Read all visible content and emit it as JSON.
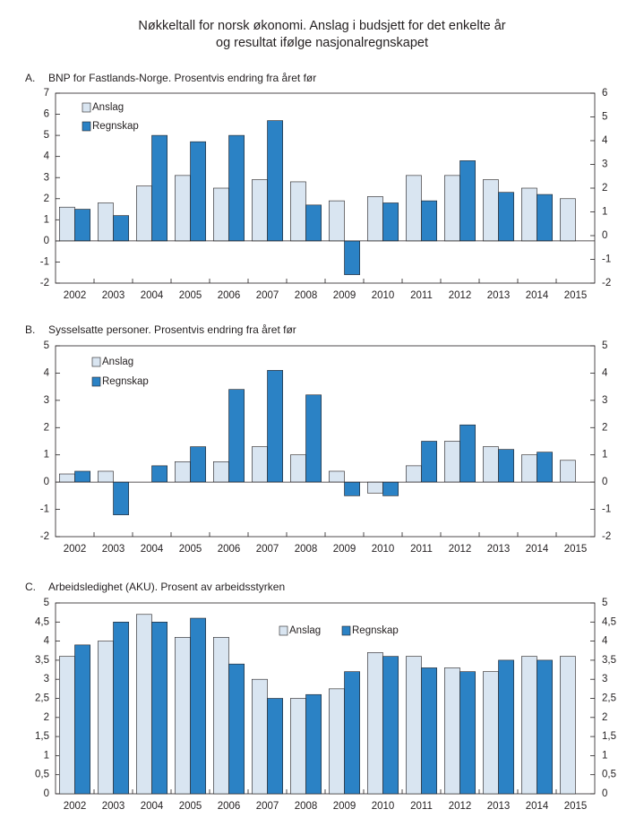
{
  "title": {
    "line1": "Nøkkeltall for norsk økonomi. Anslag i budsjett for det enkelte år",
    "line2": "og resultat ifølge nasjonalregnskapet"
  },
  "colors": {
    "anslag": "#d9e5f1",
    "regnskap": "#2b82c5",
    "edge": "#231f20"
  },
  "chart_data": [
    {
      "type": "bar",
      "id": "A",
      "letter": "A.",
      "title": "BNP for Fastlands-Norge. Prosentvis endring fra året før",
      "categories": [
        "2002",
        "2003",
        "2004",
        "2005",
        "2006",
        "2007",
        "2008",
        "2009",
        "2010",
        "2011",
        "2012",
        "2013",
        "2014",
        "2015"
      ],
      "series": [
        {
          "name": "Anslag",
          "values": [
            1.6,
            1.8,
            2.6,
            3.1,
            2.5,
            2.9,
            2.8,
            1.9,
            2.1,
            3.1,
            3.1,
            2.9,
            2.5,
            2.0
          ]
        },
        {
          "name": "Regnskap",
          "values": [
            1.5,
            1.2,
            5.0,
            4.7,
            5.0,
            5.7,
            1.7,
            -1.6,
            1.8,
            1.9,
            3.8,
            2.3,
            2.2,
            null
          ]
        }
      ],
      "ylim": [
        -2,
        7
      ],
      "yticks": [
        -2,
        -1,
        0,
        1,
        2,
        3,
        4,
        5,
        6,
        7
      ],
      "ylim_right": [
        -2,
        6
      ],
      "yticks_right": [
        -2,
        -1,
        0,
        1,
        2,
        3,
        4,
        5,
        6
      ],
      "legend": "top-left",
      "xlabel": "",
      "ylabel": ""
    },
    {
      "type": "bar",
      "id": "B",
      "letter": "B.",
      "title": "Sysselsatte personer. Prosentvis endring fra året før",
      "categories": [
        "2002",
        "2003",
        "2004",
        "2005",
        "2006",
        "2007",
        "2008",
        "2009",
        "2010",
        "2011",
        "2012",
        "2013",
        "2014",
        "2015"
      ],
      "series": [
        {
          "name": "Anslag",
          "values": [
            0.3,
            0.4,
            null,
            0.75,
            0.75,
            1.3,
            1.0,
            0.4,
            -0.4,
            0.6,
            1.5,
            1.3,
            1.0,
            0.8
          ]
        },
        {
          "name": "Regnskap",
          "values": [
            0.4,
            -1.2,
            0.6,
            1.3,
            3.4,
            4.1,
            3.2,
            -0.5,
            -0.5,
            1.5,
            2.1,
            1.2,
            1.1,
            null
          ]
        }
      ],
      "ylim": [
        -2,
        5
      ],
      "yticks": [
        -2,
        -1,
        0,
        1,
        2,
        3,
        4,
        5
      ],
      "ylim_right": [
        -2,
        5
      ],
      "yticks_right": [
        -2,
        -1,
        0,
        1,
        2,
        3,
        4,
        5
      ],
      "legend": "top-left",
      "xlabel": "",
      "ylabel": ""
    },
    {
      "type": "bar",
      "id": "C",
      "letter": "C.",
      "title": "Arbeidsledighet (AKU).  Prosent av arbeidsstyrken",
      "categories": [
        "2002",
        "2003",
        "2004",
        "2005",
        "2006",
        "2007",
        "2008",
        "2009",
        "2010",
        "2011",
        "2012",
        "2013",
        "2014",
        "2015"
      ],
      "series": [
        {
          "name": "Anslag",
          "values": [
            3.6,
            4.0,
            4.7,
            4.1,
            4.1,
            3.0,
            2.5,
            2.75,
            3.7,
            3.6,
            3.3,
            3.2,
            3.6,
            3.6
          ]
        },
        {
          "name": "Regnskap",
          "values": [
            3.9,
            4.5,
            4.5,
            4.6,
            3.4,
            2.5,
            2.6,
            3.2,
            3.6,
            3.3,
            3.2,
            3.5,
            3.5,
            null
          ]
        }
      ],
      "ylim": [
        0,
        5
      ],
      "yticks": [
        0,
        0.5,
        1,
        1.5,
        2,
        2.5,
        3,
        3.5,
        4,
        4.5,
        5
      ],
      "ytick_labels": [
        "0",
        "0,5",
        "1",
        "1,5",
        "2",
        "2,5",
        "3",
        "3,5",
        "4",
        "4,5",
        "5"
      ],
      "ylim_right": [
        0,
        5
      ],
      "yticks_right": [
        0,
        0.5,
        1,
        1.5,
        2,
        2.5,
        3,
        3.5,
        4,
        4.5,
        5
      ],
      "ytick_labels_right": [
        "0",
        "0,5",
        "1",
        "1,5",
        "2",
        "2,5",
        "3",
        "3,5",
        "4",
        "4,5",
        "5"
      ],
      "legend": "top-center",
      "xlabel": "",
      "ylabel": ""
    }
  ]
}
